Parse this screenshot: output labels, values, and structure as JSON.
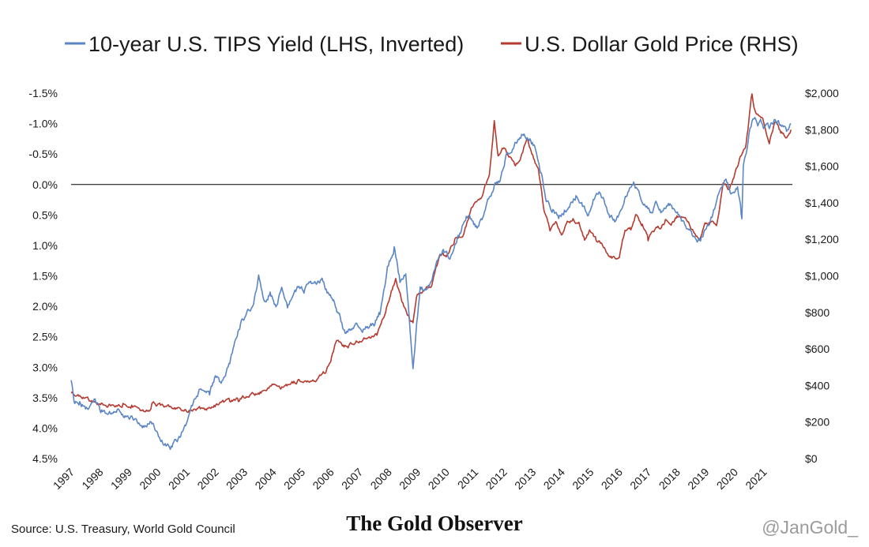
{
  "chart_data": {
    "type": "line",
    "title": "",
    "legend": {
      "placement": "top",
      "entries": [
        {
          "label": "10-year U.S. TIPS Yield (LHS, Inverted)",
          "color": "#5b86c6"
        },
        {
          "label": "U.S. Dollar Gold Price (RHS)",
          "color": "#b53a2f"
        }
      ]
    },
    "left_axis": {
      "inverted": true,
      "range": [
        -1.5,
        4.5
      ],
      "unit": "%",
      "ticks": [
        "-1.5%",
        "-1.0%",
        "-0.5%",
        "0.0%",
        "0.5%",
        "1.0%",
        "1.5%",
        "2.0%",
        "2.5%",
        "3.0%",
        "3.5%",
        "4.0%",
        "4.5%"
      ],
      "tick_values": [
        -1.5,
        -1.0,
        -0.5,
        0.0,
        0.5,
        1.0,
        1.5,
        2.0,
        2.5,
        3.0,
        3.5,
        4.0,
        4.5
      ],
      "zero_line": true
    },
    "right_axis": {
      "range": [
        0,
        2000
      ],
      "unit": "$",
      "ticks": [
        "$2,000",
        "$1,800",
        "$1,600",
        "$1,400",
        "$1,200",
        "$1,000",
        "$800",
        "$600",
        "$400",
        "$200",
        "$0"
      ],
      "tick_values": [
        2000,
        1800,
        1600,
        1400,
        1200,
        1000,
        800,
        600,
        400,
        200,
        0
      ]
    },
    "x_axis": {
      "range": [
        1997,
        2022
      ],
      "ticks": [
        "1997",
        "1998",
        "1999",
        "2000",
        "2001",
        "2002",
        "2003",
        "2004",
        "2005",
        "2006",
        "2007",
        "2008",
        "2009",
        "2010",
        "2011",
        "2012",
        "2013",
        "2014",
        "2015",
        "2016",
        "2017",
        "2018",
        "2019",
        "2020",
        "2021"
      ],
      "tick_values": [
        1997,
        1998,
        1999,
        2000,
        2001,
        2002,
        2003,
        2004,
        2005,
        2006,
        2007,
        2008,
        2009,
        2010,
        2011,
        2012,
        2013,
        2014,
        2015,
        2016,
        2017,
        2018,
        2019,
        2020,
        2021
      ],
      "label_rotation": "diagonal"
    },
    "grid": false,
    "series": [
      {
        "name": "10-year U.S. TIPS Yield (LHS, Inverted)",
        "axis": "left",
        "color": "#5b86c6",
        "x": [
          1997.0,
          1997.1,
          1997.3,
          1997.5,
          1997.8,
          1998.0,
          1998.3,
          1998.6,
          1998.9,
          1999.2,
          1999.5,
          1999.8,
          2000.0,
          2000.2,
          2000.5,
          2000.8,
          2001.0,
          2001.2,
          2001.5,
          2001.8,
          2002.0,
          2002.2,
          2002.5,
          2002.7,
          2002.9,
          2003.1,
          2003.3,
          2003.5,
          2003.7,
          2003.9,
          2004.1,
          2004.3,
          2004.5,
          2004.7,
          2004.9,
          2005.1,
          2005.3,
          2005.5,
          2005.7,
          2005.9,
          2006.1,
          2006.3,
          2006.5,
          2006.7,
          2006.9,
          2007.1,
          2007.3,
          2007.5,
          2007.7,
          2007.9,
          2008.0,
          2008.2,
          2008.4,
          2008.6,
          2008.75,
          2008.85,
          2008.95,
          2009.1,
          2009.3,
          2009.5,
          2009.7,
          2009.9,
          2010.1,
          2010.3,
          2010.5,
          2010.7,
          2010.9,
          2011.1,
          2011.3,
          2011.5,
          2011.7,
          2011.9,
          2012.1,
          2012.3,
          2012.5,
          2012.7,
          2012.9,
          2013.1,
          2013.3,
          2013.5,
          2013.7,
          2013.9,
          2014.1,
          2014.3,
          2014.5,
          2014.7,
          2014.9,
          2015.1,
          2015.3,
          2015.5,
          2015.7,
          2015.9,
          2016.1,
          2016.3,
          2016.5,
          2016.7,
          2016.9,
          2017.1,
          2017.3,
          2017.5,
          2017.7,
          2017.9,
          2018.1,
          2018.3,
          2018.5,
          2018.7,
          2018.9,
          2019.1,
          2019.3,
          2019.5,
          2019.7,
          2019.9,
          2020.1,
          2020.2,
          2020.25,
          2020.3,
          2020.4,
          2020.5,
          2020.6,
          2020.7,
          2020.8,
          2020.9,
          2021.0,
          2021.2,
          2021.4,
          2021.6,
          2021.8,
          2021.95
        ],
        "y": [
          3.25,
          3.55,
          3.6,
          3.65,
          3.55,
          3.7,
          3.75,
          3.7,
          3.8,
          3.85,
          3.95,
          3.9,
          4.1,
          4.25,
          4.3,
          4.1,
          3.9,
          3.6,
          3.35,
          3.45,
          3.15,
          3.3,
          2.95,
          2.55,
          2.25,
          2.1,
          2.0,
          1.5,
          1.9,
          1.8,
          2.0,
          1.7,
          2.0,
          1.85,
          1.65,
          1.75,
          1.6,
          1.65,
          1.55,
          1.8,
          1.9,
          2.15,
          2.45,
          2.35,
          2.25,
          2.4,
          2.35,
          2.3,
          2.1,
          1.6,
          1.3,
          1.05,
          1.6,
          1.45,
          2.4,
          3.05,
          2.45,
          1.7,
          1.75,
          1.55,
          1.25,
          1.05,
          1.2,
          1.0,
          0.8,
          0.5,
          0.6,
          0.7,
          0.5,
          0.2,
          0.0,
          -0.1,
          -0.5,
          -0.6,
          -0.75,
          -0.85,
          -0.75,
          -0.6,
          -0.15,
          0.3,
          0.4,
          0.55,
          0.45,
          0.35,
          0.2,
          0.3,
          0.5,
          0.25,
          0.15,
          0.3,
          0.55,
          0.6,
          0.4,
          0.1,
          -0.05,
          0.15,
          0.35,
          0.45,
          0.3,
          0.45,
          0.35,
          0.4,
          0.55,
          0.7,
          0.75,
          0.95,
          0.85,
          0.65,
          0.4,
          0.05,
          -0.1,
          0.15,
          0.0,
          0.3,
          0.6,
          -0.3,
          -0.55,
          -0.85,
          -1.0,
          -1.1,
          -0.95,
          -1.05,
          -0.9,
          -0.95,
          -1.05,
          -1.0,
          -0.85,
          -1.0
        ]
      },
      {
        "name": "U.S. Dollar Gold Price (RHS)",
        "axis": "right",
        "color": "#b53a2f",
        "x": [
          1997.0,
          1997.3,
          1997.6,
          1997.9,
          1998.2,
          1998.5,
          1998.8,
          1999.1,
          1999.4,
          1999.7,
          1999.8,
          2000.1,
          2000.4,
          2000.7,
          2001.0,
          2001.3,
          2001.6,
          2001.9,
          2002.2,
          2002.5,
          2002.8,
          2003.1,
          2003.4,
          2003.7,
          2004.0,
          2004.3,
          2004.6,
          2004.9,
          2005.2,
          2005.5,
          2005.8,
          2006.0,
          2006.2,
          2006.4,
          2006.6,
          2006.8,
          2007.0,
          2007.3,
          2007.6,
          2007.9,
          2008.1,
          2008.25,
          2008.5,
          2008.75,
          2008.85,
          2009.0,
          2009.2,
          2009.5,
          2009.8,
          2010.0,
          2010.3,
          2010.6,
          2010.9,
          2011.2,
          2011.5,
          2011.67,
          2011.8,
          2012.0,
          2012.2,
          2012.4,
          2012.6,
          2012.8,
          2013.0,
          2013.2,
          2013.4,
          2013.6,
          2013.8,
          2014.0,
          2014.2,
          2014.4,
          2014.6,
          2014.8,
          2015.0,
          2015.2,
          2015.4,
          2015.6,
          2015.8,
          2016.0,
          2016.2,
          2016.4,
          2016.6,
          2016.8,
          2017.0,
          2017.2,
          2017.4,
          2017.6,
          2017.8,
          2018.0,
          2018.2,
          2018.4,
          2018.6,
          2018.8,
          2019.0,
          2019.2,
          2019.4,
          2019.6,
          2019.8,
          2020.0,
          2020.2,
          2020.4,
          2020.6,
          2020.7,
          2020.8,
          2021.0,
          2021.2,
          2021.4,
          2021.6,
          2021.8,
          2021.95
        ],
        "y": [
          360,
          340,
          325,
          300,
          295,
          290,
          295,
          285,
          270,
          260,
          300,
          290,
          280,
          275,
          265,
          265,
          270,
          280,
          300,
          315,
          320,
          345,
          350,
          370,
          400,
          390,
          400,
          430,
          425,
          430,
          470,
          540,
          650,
          620,
          610,
          630,
          640,
          670,
          680,
          800,
          920,
          980,
          850,
          760,
          740,
          900,
          920,
          950,
          1120,
          1110,
          1200,
          1230,
          1380,
          1420,
          1560,
          1850,
          1650,
          1700,
          1650,
          1600,
          1650,
          1750,
          1660,
          1580,
          1350,
          1250,
          1300,
          1230,
          1300,
          1310,
          1290,
          1200,
          1250,
          1200,
          1180,
          1120,
          1100,
          1100,
          1250,
          1260,
          1340,
          1280,
          1200,
          1250,
          1260,
          1300,
          1280,
          1330,
          1320,
          1300,
          1230,
          1200,
          1290,
          1300,
          1290,
          1500,
          1480,
          1550,
          1650,
          1720,
          2000,
          1900,
          1880,
          1850,
          1730,
          1850,
          1790,
          1760,
          1800
        ]
      }
    ]
  },
  "footer": {
    "source": "Source: U.S. Treasury, World Gold Council",
    "brand": "The Gold Observer",
    "handle": "@JanGold_"
  }
}
